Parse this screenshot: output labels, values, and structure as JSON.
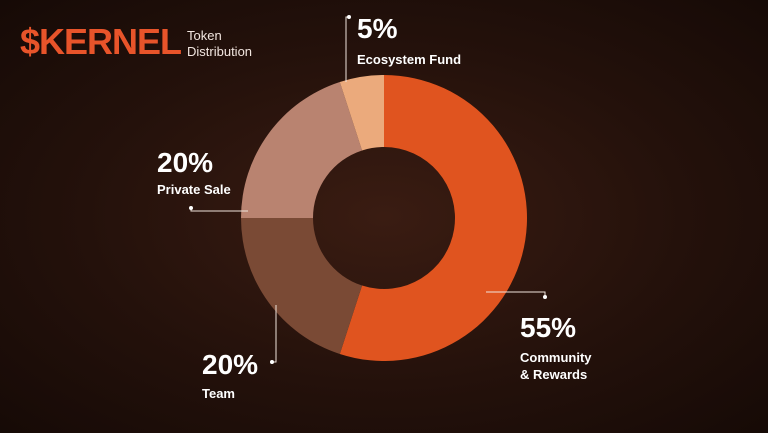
{
  "header": {
    "title": "$KERNEL",
    "subtitle_line1": "Token",
    "subtitle_line2": "Distribution"
  },
  "chart_data": {
    "type": "pie",
    "style": "donut",
    "title": "Token Distribution",
    "slices": [
      {
        "label": "Community & Rewards",
        "label_line1": "Community",
        "label_line2": "& Rewards",
        "value": 55,
        "pct": "55%",
        "color": "#e0541f"
      },
      {
        "label": "Team",
        "value": 20,
        "pct": "20%",
        "color": "#7a4a35"
      },
      {
        "label": "Private Sale",
        "value": 20,
        "pct": "20%",
        "color": "#b98370"
      },
      {
        "label": "Ecosystem Fund",
        "value": 5,
        "pct": "5%",
        "color": "#ebaa7c"
      }
    ]
  }
}
